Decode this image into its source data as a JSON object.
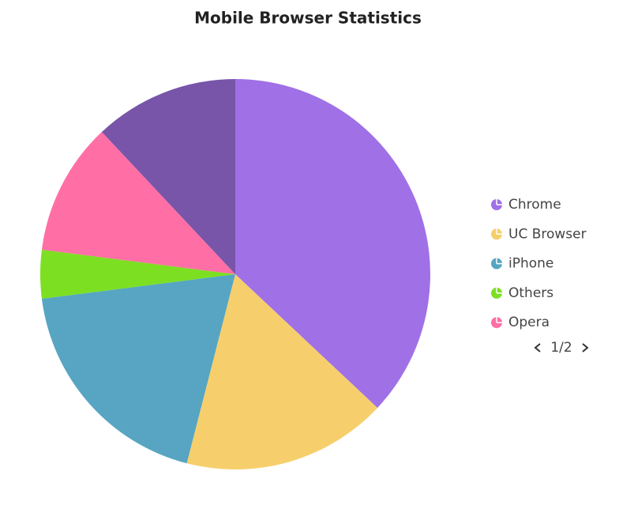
{
  "chart_data": {
    "type": "pie",
    "title": "Mobile Browser Statistics",
    "categories": [
      "Chrome",
      "UC Browser",
      "iPhone",
      "Others",
      "Opera",
      null
    ],
    "values": [
      37,
      17,
      19,
      4,
      11,
      12
    ],
    "colors": [
      "#a070e6",
      "#f6cf6c",
      "#57a5c2",
      "#7ddf22",
      "#ff6fa6",
      "#7855a8"
    ],
    "legend": "right",
    "legend_page": "1/2"
  }
}
